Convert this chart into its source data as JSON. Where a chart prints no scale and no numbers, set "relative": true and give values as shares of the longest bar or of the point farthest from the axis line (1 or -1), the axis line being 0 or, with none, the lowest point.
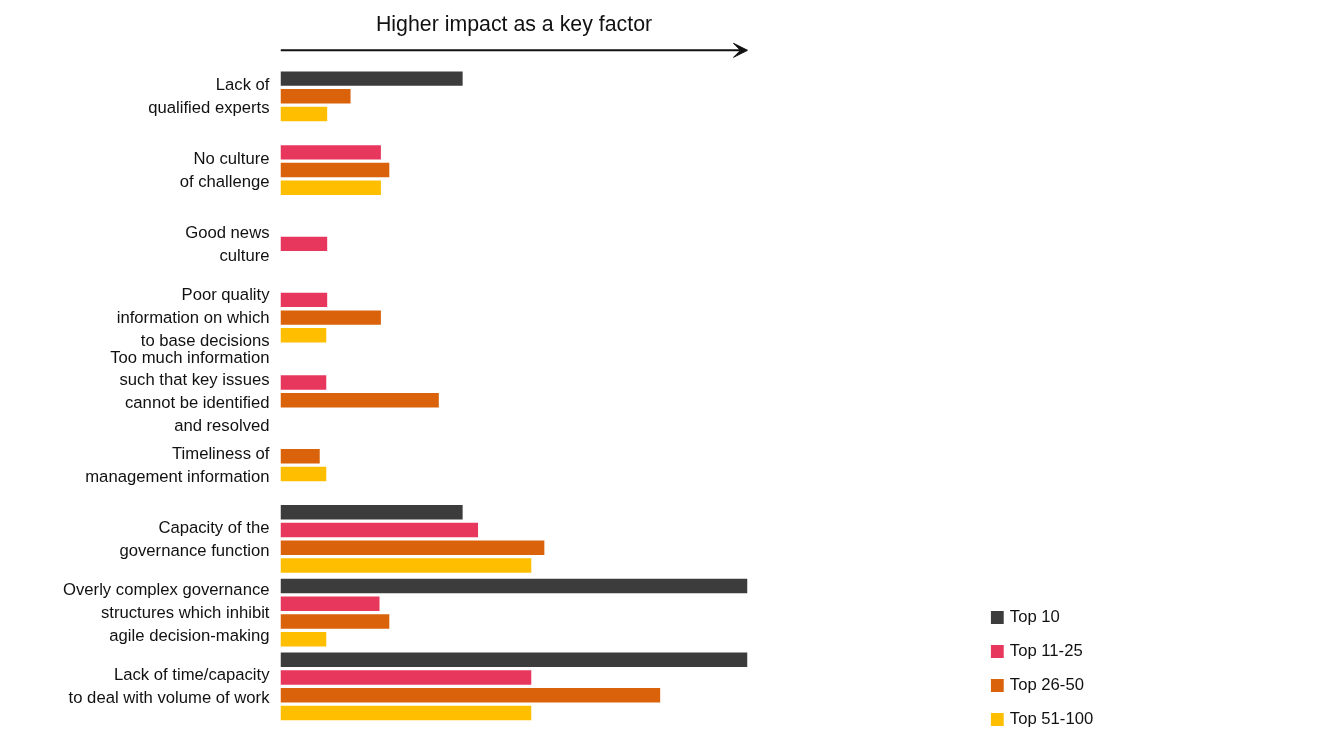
{
  "chart_data": {
    "type": "bar",
    "orientation": "horizontal",
    "relative": true,
    "categories": [
      "Lack of\nqualified experts",
      "No culture\nof challenge",
      "Good news\nculture",
      "Poor quality\ninformation on which\nto base decisions",
      "Too much information\nsuch that key issues\ncannot be identified\nand resolved",
      "Timeliness of\nmanagement information",
      "Capacity of the\ngovernance function",
      "Overly complex governance\nstructures which inhibit\nagile decision-making",
      "Lack of time/capacity\nto deal with volume of work"
    ],
    "series": [
      {
        "name": "Top 10",
        "color": "#3c3c3c",
        "values": [
          0.39,
          null,
          null,
          null,
          null,
          null,
          0.39,
          1.0,
          1.0
        ]
      },
      {
        "name": "Top 11-25",
        "color": "#e8375c",
        "values": [
          null,
          0.215,
          0.1,
          0.1,
          0.098,
          null,
          0.423,
          0.212,
          0.537
        ]
      },
      {
        "name": "Top 26-50",
        "color": "#d9620b",
        "values": [
          0.15,
          0.233,
          null,
          0.215,
          0.339,
          0.084,
          0.565,
          0.233,
          0.813
        ]
      },
      {
        "name": "Top 51-100",
        "color": "#ffbf00",
        "values": [
          0.1,
          0.215,
          null,
          0.098,
          null,
          0.098,
          0.537,
          0.098,
          0.537
        ]
      }
    ],
    "annotations": [
      "Higher impact as a key factor"
    ],
    "legend": "bottom right",
    "grid": false
  }
}
